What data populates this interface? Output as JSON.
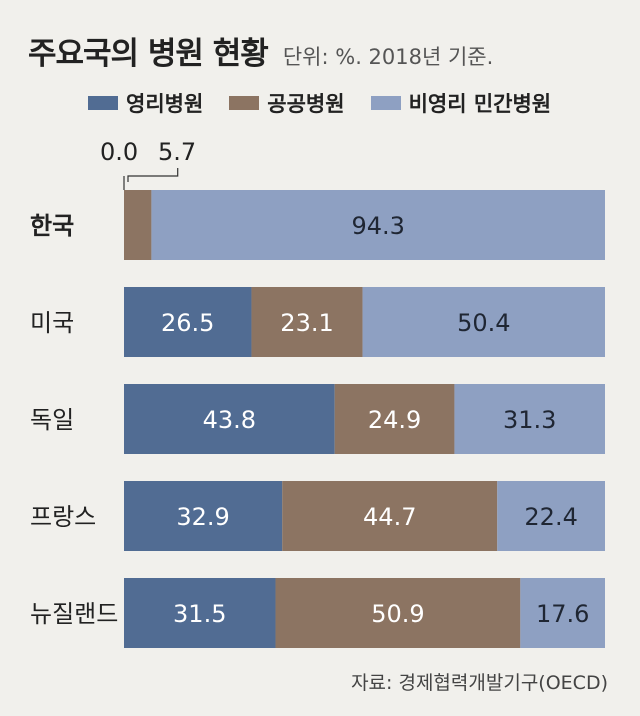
{
  "header": {
    "title": "주요국의 병원 현황",
    "unit_note": "단위: %. 2018년 기준."
  },
  "source": "자료: 경제협력개발기구(OECD)",
  "colors": {
    "for_profit": "#516c93",
    "public": "#8c7462",
    "non_profit_private": "#8ea0c2",
    "background": "#f1f0ec"
  },
  "chart_data": {
    "type": "bar",
    "orientation": "horizontal",
    "stacked": true,
    "title": "주요국의 병원 현황",
    "subtitle": "단위: %. 2018년 기준.",
    "legend_position": "top",
    "xlim": [
      0,
      100
    ],
    "categories": [
      "한국",
      "미국",
      "독일",
      "프랑스",
      "뉴질랜드"
    ],
    "series": [
      {
        "name": "영리병원",
        "values": [
          0.0,
          26.5,
          43.8,
          32.9,
          31.5
        ]
      },
      {
        "name": "공공병원",
        "values": [
          5.7,
          23.1,
          24.9,
          44.7,
          50.9
        ]
      },
      {
        "name": "비영리 민간병원",
        "values": [
          94.3,
          50.4,
          31.3,
          22.4,
          17.6
        ]
      }
    ],
    "annotations": [
      "0.0",
      "5.7"
    ]
  }
}
